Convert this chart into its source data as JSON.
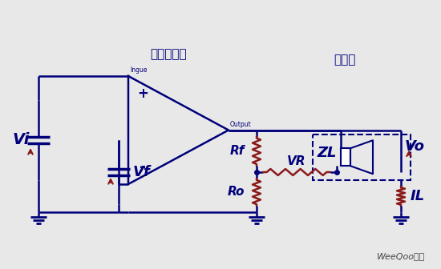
{
  "bg_color": "#e8e8e8",
  "line_color": "#00007B",
  "resistor_color": "#8B1A1A",
  "title1": "功率放大器",
  "title2": "扬声器",
  "label_vi": "Vi",
  "label_vf": "Vf",
  "label_rf": "Rf",
  "label_vr": "VR",
  "label_ro": "Ro",
  "label_zl": "ZL",
  "label_vo": "Vo",
  "label_il": "IL",
  "label_input": "Ingue",
  "label_output": "Output",
  "watermark": "WeeQoo维库",
  "figsize": [
    5.5,
    3.36
  ],
  "dpi": 100
}
